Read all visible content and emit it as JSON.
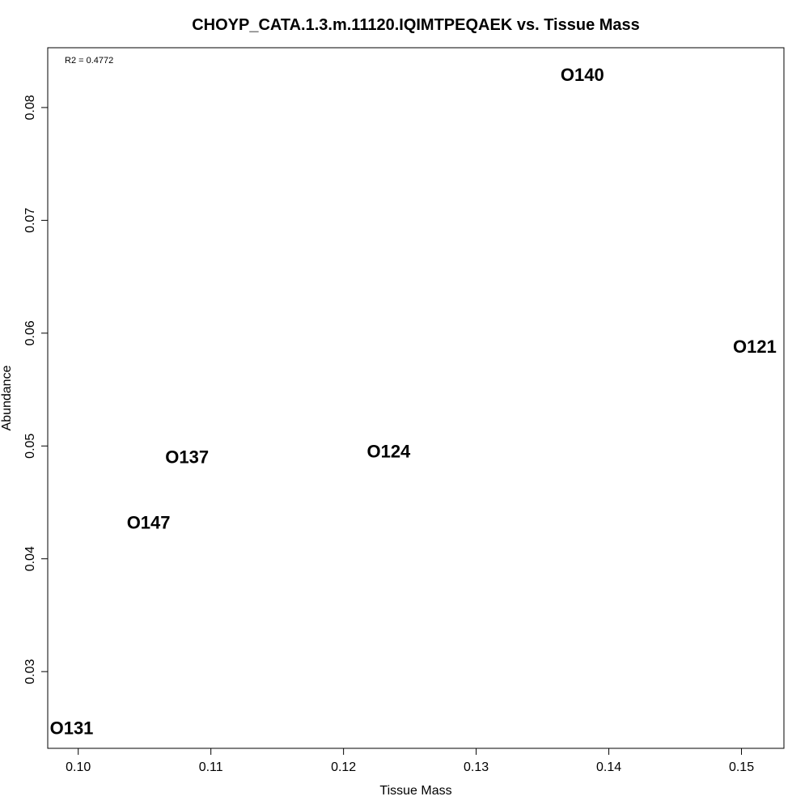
{
  "chart_data": {
    "type": "scatter",
    "title": "CHOYP_CATA.1.3.m.11120.IQIMTPEQAEK vs. Tissue Mass",
    "xlabel": "Tissue Mass",
    "ylabel": "Abundance",
    "xlim": [
      0.0977,
      0.1532
    ],
    "ylim": [
      0.0232,
      0.0853
    ],
    "xticks": [
      0.1,
      0.11,
      0.12,
      0.13,
      0.14,
      0.15
    ],
    "xtick_labels": [
      "0.10",
      "0.11",
      "0.12",
      "0.13",
      "0.14",
      "0.15"
    ],
    "yticks": [
      0.03,
      0.04,
      0.05,
      0.06,
      0.07,
      0.08
    ],
    "ytick_labels": [
      "0.03",
      "0.04",
      "0.05",
      "0.06",
      "0.07",
      "0.08"
    ],
    "grid": false,
    "annotation": "R2 = 0.4772",
    "points": [
      {
        "label": "O140",
        "x": 0.138,
        "y": 0.0829
      },
      {
        "label": "O121",
        "x": 0.151,
        "y": 0.0588
      },
      {
        "label": "O137",
        "x": 0.1082,
        "y": 0.049
      },
      {
        "label": "O124",
        "x": 0.1234,
        "y": 0.0495
      },
      {
        "label": "O147",
        "x": 0.1053,
        "y": 0.0432
      },
      {
        "label": "O131",
        "x": 0.0995,
        "y": 0.025
      }
    ]
  }
}
